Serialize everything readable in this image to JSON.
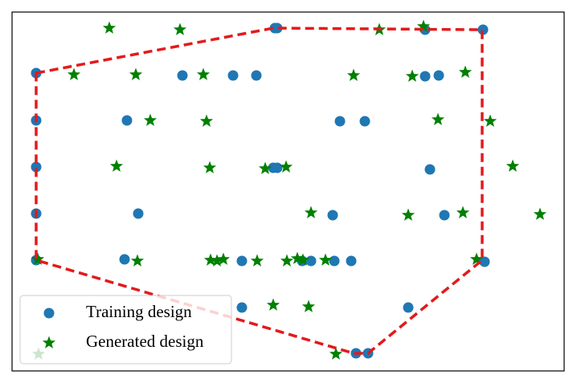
{
  "chart_data": {
    "type": "scatter",
    "xlim": [
      15,
      702
    ],
    "ylim": [
      462,
      15
    ],
    "series": [
      {
        "name": "Training design",
        "color": "#1f77b4",
        "marker": "circle",
        "x": [
          45,
          45,
          45,
          45,
          45,
          342,
          345,
          529,
          601,
          227,
          290,
          319,
          529,
          546,
          158,
          423,
          454,
          340,
          345,
          535,
          172,
          414,
          553,
          155,
          301,
          376,
          387,
          416,
          437,
          603,
          301,
          508,
          443,
          458
        ],
        "y": [
          91,
          150,
          208,
          266,
          324,
          35,
          35,
          37,
          37,
          94,
          94,
          94,
          95,
          94,
          150,
          151,
          151,
          209,
          209,
          211,
          266,
          268,
          268,
          323,
          325,
          325,
          325,
          325,
          325,
          326,
          383,
          383,
          440,
          440
        ]
      },
      {
        "name": "Generated design",
        "color": "#008000",
        "marker": "star",
        "x": [
          136,
          224,
          472,
          527,
          92,
          169,
          253,
          440,
          513,
          579,
          187,
          257,
          545,
          610,
          145,
          261,
          330,
          356,
          638,
          387,
          508,
          576,
          672,
          47,
          171,
          262,
          270,
          278,
          320,
          357,
          370,
          377,
          405,
          593,
          340,
          384,
          418,
          48
        ],
        "y": [
          35,
          37,
          37,
          33,
          93,
          93,
          93,
          94,
          95,
          90,
          150,
          151,
          149,
          151,
          207,
          209,
          210,
          208,
          207,
          265,
          268,
          265,
          267,
          323,
          325,
          324,
          325,
          323,
          325,
          325,
          322,
          324,
          324,
          323,
          380,
          382,
          441,
          441
        ]
      }
    ],
    "hull": {
      "color": "#e31a1c",
      "x": [
        45,
        340,
        600,
        600,
        458,
        440,
        45
      ],
      "y": [
        91,
        35,
        37,
        324,
        440,
        440,
        324
      ]
    },
    "legend": "lower left"
  }
}
